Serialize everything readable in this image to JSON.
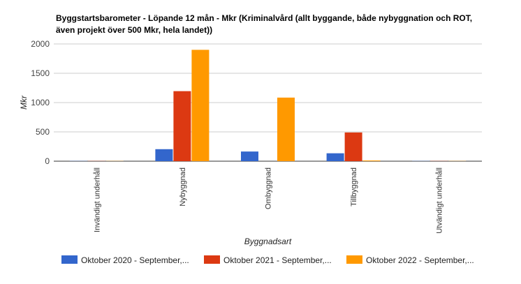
{
  "chart_data": {
    "type": "bar",
    "title_line1": "Byggstartsbarometer - Löpande 12 mån - Mkr (Kriminalvård (allt byggande, både nybyggnation och ROT,",
    "title_line2": "även projekt över 500 Mkr, hela landet))",
    "xlabel": "Byggnadsart",
    "ylabel": "Mkr",
    "ylim": [
      0,
      2000
    ],
    "yticks": [
      0,
      500,
      1000,
      1500,
      2000
    ],
    "grid": true,
    "legend_position": "bottom",
    "categories": [
      "Invändigt underhåll",
      "Nybyggnad",
      "Ombyggnad",
      "Tillbyggnad",
      "Utvändigt underhåll"
    ],
    "series": [
      {
        "name": "Oktober 2020 - September,...",
        "color": "#3366cc",
        "values": [
          3,
          205,
          165,
          135,
          3
        ]
      },
      {
        "name": "Oktober 2021 - September,...",
        "color": "#dc3912",
        "values": [
          3,
          1195,
          0,
          490,
          3
        ]
      },
      {
        "name": "Oktober 2022 - September,...",
        "color": "#ff9900",
        "values": [
          3,
          1900,
          1085,
          12,
          3
        ]
      }
    ]
  }
}
